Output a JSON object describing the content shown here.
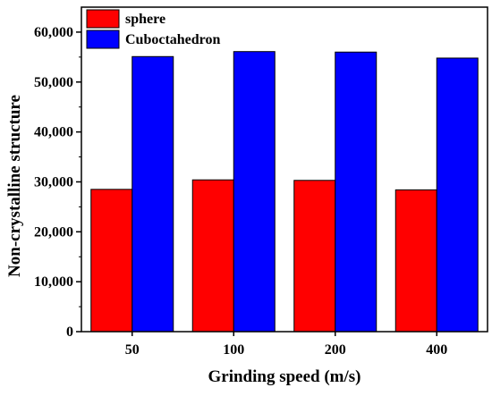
{
  "chart_data": {
    "type": "bar",
    "title": "",
    "xlabel": "Grinding speed (m/s)",
    "ylabel": "Non-crystalline structure",
    "categories": [
      "50",
      "100",
      "200",
      "400"
    ],
    "series": [
      {
        "name": "sphere",
        "color": "#ff0000",
        "values": [
          28500,
          30400,
          30300,
          28400
        ]
      },
      {
        "name": "Cuboctahedron",
        "color": "#0000ff",
        "values": [
          55100,
          56100,
          56000,
          54800
        ]
      }
    ],
    "ylim": [
      0,
      65000
    ],
    "yticks": [
      0,
      10000,
      20000,
      30000,
      40000,
      50000,
      60000
    ],
    "ytick_labels": [
      "0",
      "10,000",
      "20,000",
      "30,000",
      "40,000",
      "50,000",
      "60,000"
    ],
    "legend_position": "top-left",
    "grid": false
  }
}
